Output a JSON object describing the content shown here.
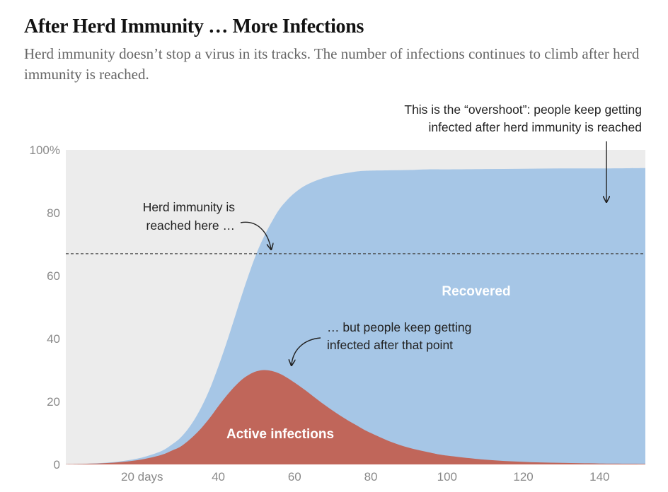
{
  "header": {
    "title": "After Herd Immunity … More Infections",
    "subtitle": "Herd immunity doesn’t stop a virus in its tracks. The number of infections continues to climb after herd immunity is reached."
  },
  "colors": {
    "background_band": "#ececec",
    "recovered": "#a6c6e6",
    "active": "#c0665a",
    "dashed_line": "#444444"
  },
  "annotations": {
    "overshoot_line1": "This is the “overshoot”: people keep getting",
    "overshoot_line2": "infected after herd immunity is reached",
    "herd_line1": "Herd immunity is",
    "herd_line2": "reached here …",
    "but_line1": "… but people keep getting",
    "but_line2": "infected after that point"
  },
  "chart_data": {
    "type": "area",
    "title": "After Herd Immunity … More Infections",
    "xlabel": "",
    "ylabel": "",
    "xlim": [
      0,
      152
    ],
    "ylim": [
      0,
      100
    ],
    "x_ticks": [
      {
        "value": 20,
        "label": "20 days"
      },
      {
        "value": 40,
        "label": "40"
      },
      {
        "value": 60,
        "label": "60"
      },
      {
        "value": 80,
        "label": "80"
      },
      {
        "value": 100,
        "label": "100"
      },
      {
        "value": 120,
        "label": "120"
      },
      {
        "value": 140,
        "label": "140"
      }
    ],
    "y_ticks": [
      {
        "value": 0,
        "label": "0"
      },
      {
        "value": 20,
        "label": "20"
      },
      {
        "value": 40,
        "label": "40"
      },
      {
        "value": 60,
        "label": "60"
      },
      {
        "value": 80,
        "label": "80"
      },
      {
        "value": 100,
        "label": "100%"
      }
    ],
    "herd_immunity_threshold": 67,
    "x": [
      0,
      5,
      10,
      15,
      20,
      25,
      28,
      30,
      32,
      34,
      36,
      38,
      40,
      42,
      44,
      46,
      48,
      50,
      52,
      54,
      56,
      58,
      60,
      62,
      64,
      66,
      68,
      70,
      72,
      74,
      76,
      78,
      80,
      85,
      90,
      95,
      100,
      110,
      120,
      130,
      140,
      152
    ],
    "series": [
      {
        "name": "Active infections",
        "values": [
          0.1,
          0.2,
          0.4,
          0.8,
          1.6,
          3.0,
          4.5,
          5.6,
          7.4,
          9.6,
          12.2,
          15.2,
          18.5,
          21.6,
          24.4,
          26.8,
          28.5,
          29.6,
          30.0,
          29.7,
          28.9,
          27.6,
          26.0,
          24.3,
          22.5,
          20.6,
          18.8,
          17.1,
          15.5,
          14.0,
          12.6,
          11.2,
          10.0,
          7.3,
          5.3,
          3.9,
          2.8,
          1.5,
          0.8,
          0.5,
          0.3,
          0.2
        ]
      },
      {
        "name": "Recovered",
        "values": [
          0,
          0,
          0.1,
          0.3,
          0.6,
          1.2,
          2.0,
          2.8,
          3.8,
          5.2,
          7.1,
          9.5,
          12.6,
          16.5,
          21.2,
          26.4,
          31.9,
          37.4,
          42.5,
          47.4,
          52.2,
          56.4,
          60.3,
          63.8,
          66.9,
          69.8,
          72.4,
          74.7,
          76.8,
          78.7,
          80.5,
          82.1,
          83.4,
          86.2,
          88.3,
          89.9,
          91.0,
          92.4,
          93.2,
          93.6,
          93.8,
          94.0
        ]
      }
    ],
    "area_labels": {
      "recovered": "Recovered",
      "active": "Active infections"
    },
    "grid": false,
    "legend": "none"
  }
}
